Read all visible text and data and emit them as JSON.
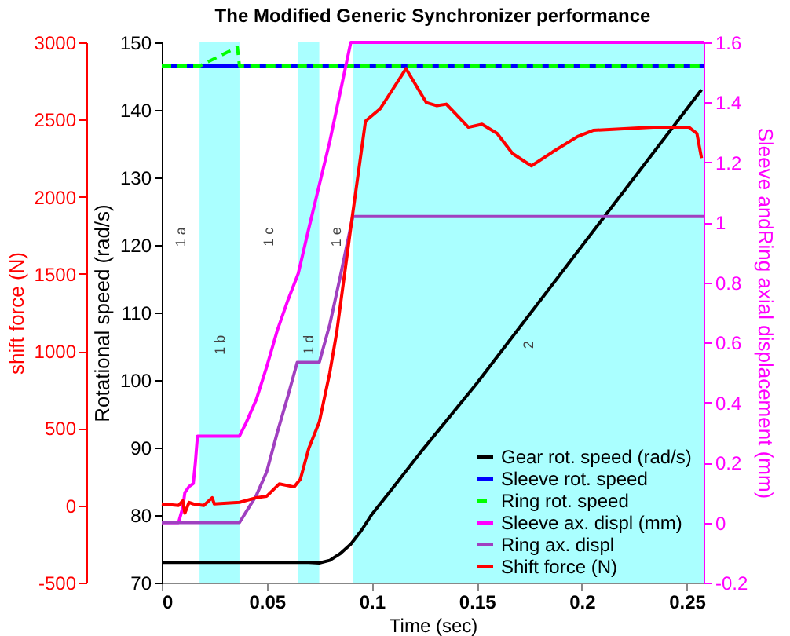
{
  "chart_data": {
    "type": "line",
    "title": "The Modified Generic Synchronizer performance",
    "xlabel": "Time (sec)",
    "ylabel": "Rotational speed (rad/s)",
    "y2label": "Sleeve andRing axial displacement (mm)",
    "y3label": "shift force (N)",
    "xlim": [
      0,
      0.258
    ],
    "xticks": [
      0,
      0.05,
      0.1,
      0.15,
      0.2,
      0.25
    ],
    "ylim": [
      70,
      150
    ],
    "yticks": [
      70,
      80,
      90,
      100,
      110,
      120,
      130,
      140,
      150
    ],
    "y2lim": [
      -0.2,
      1.6
    ],
    "y2ticks": [
      -0.2,
      0,
      0.2,
      0.4,
      0.6,
      0.8,
      1,
      1.2,
      1.4,
      1.6
    ],
    "y3lim": [
      -500,
      3000
    ],
    "y3ticks": [
      -500,
      0,
      500,
      1000,
      1500,
      2000,
      2500,
      3000
    ],
    "grid": false,
    "legend": "bottom right",
    "line_style": "solid",
    "marker": "none",
    "bands": [
      {
        "axis": "x",
        "from": 0.018,
        "to": 0.037,
        "color": "#aaffff"
      },
      {
        "axis": "x",
        "from": 0.065,
        "to": 0.075,
        "color": "#aaffff"
      },
      {
        "axis": "x",
        "from": 0.091,
        "to": 0.258,
        "color": "#aaffff"
      }
    ],
    "annotations": [
      "1 a",
      "1 b",
      "1 c",
      "1 d",
      "1 e",
      "2"
    ],
    "series": [
      {
        "name": "Gear rot. speed  (rad/s)",
        "color": "#000000",
        "x": [
          0,
          0.07,
          0.075,
          0.08,
          0.085,
          0.09,
          0.095,
          0.1,
          0.11,
          0.123,
          0.15,
          0.2115,
          0.257
        ],
        "values": [
          73,
          73,
          72.9,
          73.3,
          74.3,
          75.7,
          77.7,
          80.1,
          84,
          89.2,
          99.5,
          124.5,
          143
        ]
      },
      {
        "name": "Sleeve rot. speed",
        "color": "#0000ff",
        "x": [
          0,
          0.258
        ],
        "values": [
          146.5,
          146.5
        ]
      },
      {
        "name": "Ring rot. speed",
        "color": "#00ff00",
        "line_style": "dashed",
        "x": [
          0,
          0.018,
          0.036,
          0.037,
          0.258
        ],
        "values": [
          146.5,
          146.5,
          149.3,
          146.5,
          146.5
        ]
      },
      {
        "name": "Sleeve ax. displ (mm)",
        "color": "#ff00ff",
        "axis": "y2",
        "x": [
          0,
          0.008,
          0.01,
          0.011,
          0.013,
          0.015,
          0.016,
          0.017,
          0.037,
          0.04,
          0.045,
          0.05,
          0.055,
          0.06,
          0.065,
          0.07,
          0.08,
          0.09,
          0.258
        ],
        "values": [
          0,
          0,
          0.05,
          0.1,
          0.12,
          0.13,
          0.2,
          0.288,
          0.288,
          0.33,
          0.41,
          0.52,
          0.64,
          0.74,
          0.83,
          0.98,
          1.27,
          1.6,
          1.6
        ]
      },
      {
        "name": "Ring ax. displ",
        "color": "#a040c0",
        "axis": "y2",
        "x": [
          0,
          0.037,
          0.045,
          0.05,
          0.055,
          0.06,
          0.0645,
          0.075,
          0.08,
          0.085,
          0.091,
          0.258
        ],
        "values": [
          0,
          0,
          0.09,
          0.17,
          0.3,
          0.42,
          0.534,
          0.534,
          0.66,
          0.82,
          1.02,
          1.02
        ]
      },
      {
        "name": "Shift force (N)",
        "color": "#ff0000",
        "axis": "y3",
        "x": [
          0,
          0.008,
          0.01,
          0.011,
          0.013,
          0.015,
          0.02,
          0.024,
          0.025,
          0.037,
          0.045,
          0.05,
          0.056,
          0.063,
          0.066,
          0.07,
          0.075,
          0.08,
          0.0834,
          0.09,
          0.097,
          0.104,
          0.1163,
          0.126,
          0.131,
          0.1355,
          0.146,
          0.1525,
          0.1597,
          0.167,
          0.176,
          0.1861,
          0.198,
          0.2054,
          0.234,
          0.251,
          0.2548,
          0.257
        ],
        "values": [
          10,
          0,
          30,
          -50,
          20,
          10,
          0,
          50,
          10,
          20,
          50,
          60,
          140,
          120,
          170,
          370,
          540,
          860,
          1130,
          1800,
          2490,
          2570,
          2830,
          2610,
          2590,
          2600,
          2450,
          2470,
          2410,
          2280,
          2200,
          2290,
          2390,
          2430,
          2450,
          2450,
          2410,
          2250
        ]
      }
    ]
  }
}
